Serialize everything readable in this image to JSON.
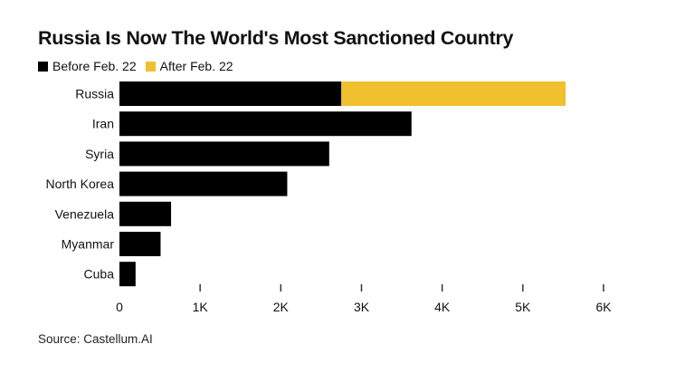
{
  "title": "Russia Is Now The World's Most Sanctioned Country",
  "source": "Source: Castellum.AI",
  "colors": {
    "before": "#000000",
    "after": "#f0c02e",
    "axis": "#333333"
  },
  "chart_data": {
    "type": "bar",
    "orientation": "horizontal",
    "stacked": true,
    "categories": [
      "Russia",
      "Iran",
      "Syria",
      "North Korea",
      "Venezuela",
      "Myanmar",
      "Cuba"
    ],
    "series": [
      {
        "name": "Before Feb. 22",
        "color": "#000000",
        "values": [
          2750,
          3620,
          2600,
          2080,
          640,
          510,
          200
        ]
      },
      {
        "name": "After Feb. 22",
        "color": "#f0c02e",
        "values": [
          2780,
          0,
          0,
          0,
          0,
          0,
          0
        ]
      }
    ],
    "xlim": [
      0,
      6000
    ],
    "xticks": [
      0,
      1000,
      2000,
      3000,
      4000,
      5000,
      6000
    ],
    "xtick_labels": [
      "0",
      "1K",
      "2K",
      "3K",
      "4K",
      "5K",
      "6K"
    ],
    "grid": false,
    "legend_position": "top-left"
  }
}
